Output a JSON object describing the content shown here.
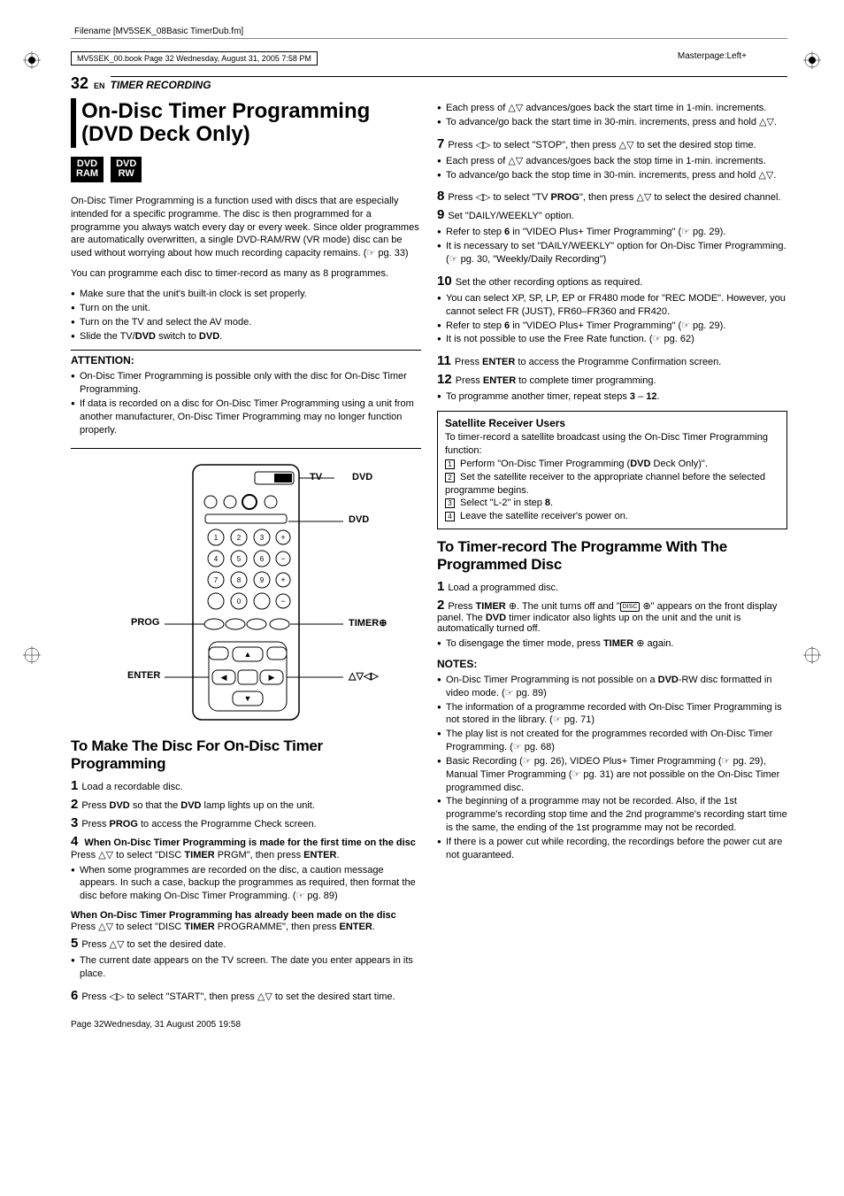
{
  "meta": {
    "filename": "Filename [MV5SEK_08Basic TimerDub.fm]",
    "bookline": "MV5SEK_00.book  Page 32  Wednesday, August 31, 2005  7:58 PM",
    "masterpage": "Masterpage:Left+",
    "footer": "Page 32Wednesday, 31 August 2005  19:58"
  },
  "header": {
    "page_num": "32",
    "lang": "EN",
    "section": "TIMER RECORDING"
  },
  "title": "On-Disc Timer Programming (DVD Deck Only)",
  "badges": [
    "DVD\nRAM",
    "DVD\nRW"
  ],
  "intro1": "On-Disc Timer Programming is a function used with discs that are especially intended for a specific programme. The disc is then programmed for a programme you always watch every day or every week. Since older programmes are automatically overwritten, a single DVD-RAM/RW (VR mode) disc can be used without worrying about how much recording capacity remains. (☞ pg. 33)",
  "intro2": "You can programme each disc to timer-record as many as 8 programmes.",
  "prechecks": [
    "Make sure that the unit's built-in clock is set properly.",
    "Turn on the unit.",
    "Turn on the TV and select the AV mode.",
    "Slide the TV/DVD switch to DVD."
  ],
  "attention": {
    "heading": "ATTENTION:",
    "items": [
      "On-Disc Timer Programming is possible only with the disc for On-Disc Timer Programming.",
      "If data is recorded on a disc for On-Disc Timer Programming using a unit from another manufacturer, On-Disc Timer Programming may no longer function properly."
    ]
  },
  "remote_labels": {
    "tv": "TV",
    "dvd_top": "DVD",
    "dvd": "DVD",
    "prog": "PROG",
    "enter": "ENTER",
    "timer": "TIMER",
    "arrows": "△▽◁▷"
  },
  "sub1": "To Make The Disc For On-Disc Timer Programming",
  "steps_left": [
    {
      "n": "1",
      "t": "Load a recordable disc."
    },
    {
      "n": "2",
      "t": "Press DVD so that the DVD lamp lights up on the unit."
    },
    {
      "n": "3",
      "t": "Press PROG to access the Programme Check screen."
    },
    {
      "n": "4",
      "head": "When On-Disc Timer Programming is made for the first time on the disc",
      "t": "Press △▽ to select \"DISC TIMER PRGM\", then press ENTER.",
      "bullets": [
        "When some programmes are recorded on the disc, a caution message appears. In such a case, backup the programmes as required, then format the disc before making On-Disc Timer Programming. (☞ pg. 89)"
      ],
      "head2": "When On-Disc Timer Programming has already been made on the disc",
      "t2": "Press △▽ to select \"DISC TIMER PROGRAMME\", then press ENTER."
    },
    {
      "n": "5",
      "t": "Press △▽ to set the desired date.",
      "bullets": [
        "The current date appears on the TV screen. The date you enter appears in its place."
      ]
    },
    {
      "n": "6",
      "t": "Press ◁▷ to select \"START\", then press △▽ to set the desired start time."
    }
  ],
  "right_top_bullets": [
    "Each press of △▽ advances/goes back the start time in 1-min. increments.",
    "To advance/go back the start time in 30-min. increments, press and hold △▽."
  ],
  "steps_right": [
    {
      "n": "7",
      "t": "Press ◁▷ to select \"STOP\", then press △▽ to set the desired stop time.",
      "bullets": [
        "Each press of △▽ advances/goes back the stop time in 1-min. increments.",
        "To advance/go back the stop time in 30-min. increments, press and hold △▽."
      ]
    },
    {
      "n": "8",
      "t": "Press ◁▷ to select \"TV PROG\", then press △▽ to select the desired channel."
    },
    {
      "n": "9",
      "t": "Set \"DAILY/WEEKLY\" option.",
      "bullets": [
        "Refer to step 6 in \"VIDEO Plus+ Timer Programming\" (☞ pg. 29).",
        "It is necessary to set \"DAILY/WEEKLY\" option for On-Disc Timer Programming. (☞ pg. 30, \"Weekly/Daily Recording\")"
      ]
    },
    {
      "n": "10",
      "t": "Set the other recording options as required.",
      "bullets": [
        "You can select XP, SP, LP, EP or FR480 mode for \"REC MODE\". However, you cannot select FR (JUST), FR60–FR360 and FR420.",
        "Refer to step 6 in \"VIDEO Plus+ Timer Programming\" (☞ pg. 29).",
        "It is not possible to use the Free Rate function. (☞ pg. 62)"
      ]
    },
    {
      "n": "11",
      "t": "Press ENTER to access the Programme Confirmation screen."
    },
    {
      "n": "12",
      "t": "Press ENTER to complete timer programming.",
      "bullets": [
        "To programme another timer, repeat steps 3 – 12."
      ]
    }
  ],
  "sat": {
    "heading": "Satellite Receiver Users",
    "intro": "To timer-record a satellite broadcast using the On-Disc Timer Programming function:",
    "items": [
      "Perform \"On-Disc Timer Programming (DVD Deck Only)\".",
      "Set the satellite receiver to the appropriate channel before the selected programme begins.",
      "Select \"L-2\" in step 8.",
      "Leave the satellite receiver's power on."
    ]
  },
  "sub2": "To Timer-record The Programme With The Programmed Disc",
  "steps2": [
    {
      "n": "1",
      "t": "Load a programmed disc."
    },
    {
      "n": "2",
      "t": "Press TIMER ⊕. The unit turns off and \"DISC ⊕\" appears on the front display panel. The DVD timer indicator also lights up on the unit and the unit is automatically turned off.",
      "bullets": [
        "To disengage the timer mode, press TIMER ⊕ again."
      ]
    }
  ],
  "notes": {
    "heading": "NOTES:",
    "items": [
      "On-Disc Timer Programming is not possible on a DVD-RW disc formatted in video mode. (☞ pg. 89)",
      "The information of a programme recorded with On-Disc Timer Programming is not stored in the library. (☞ pg. 71)",
      "The play list is not created for the programmes recorded with On-Disc Timer Programming. (☞ pg. 68)",
      "Basic Recording (☞ pg. 26), VIDEO Plus+ Timer Programming (☞ pg. 29), Manual Timer Programming (☞ pg. 31) are not possible on the On-Disc Timer programmed disc.",
      "The beginning of a programme may not be recorded. Also, if the 1st programme's recording stop time and the 2nd programme's recording start time is the same, the ending of the 1st programme may not be recorded.",
      "If there is a power cut while recording, the recordings before the power cut are not guaranteed."
    ]
  },
  "colors": {
    "text": "#000000",
    "bg": "#ffffff"
  }
}
